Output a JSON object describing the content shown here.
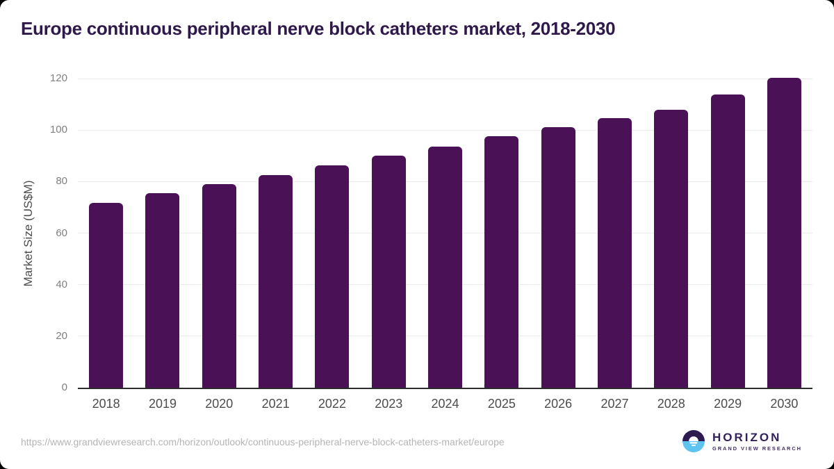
{
  "header": {
    "title": "Europe continuous peripheral nerve block catheters market, 2018-2030",
    "title_color": "#2f194b"
  },
  "chart_data": {
    "type": "bar",
    "title": "Europe continuous peripheral nerve block catheters market, 2018-2030",
    "categories": [
      "2018",
      "2019",
      "2020",
      "2021",
      "2022",
      "2023",
      "2024",
      "2025",
      "2026",
      "2027",
      "2028",
      "2029",
      "2030"
    ],
    "values": [
      71.8,
      75.5,
      79.0,
      82.5,
      86.3,
      90.1,
      93.7,
      97.6,
      101.2,
      104.6,
      108.0,
      113.9,
      120.4
    ],
    "unit": "US$M",
    "xlabel": "",
    "ylabel": "Market Size (US$M)",
    "ylim": [
      0,
      120
    ],
    "y_ticks": [
      0,
      20,
      40,
      60,
      80,
      100,
      120
    ],
    "grid": true,
    "legend": "none",
    "bar_color": "#4a1157",
    "gridline_color": "#ebebeb",
    "axis_line_color": "#2b2b2b"
  },
  "footer": {
    "source_url": "https://www.grandviewresearch.com/horizon/outlook/continuous-peripheral-nerve-block-catheters-market/europe",
    "logo": {
      "name": "HORIZON",
      "subtitle": "GRAND VIEW RESEARCH",
      "dark_color": "#2d1b4f",
      "blue_color": "#5ec3ee"
    }
  }
}
